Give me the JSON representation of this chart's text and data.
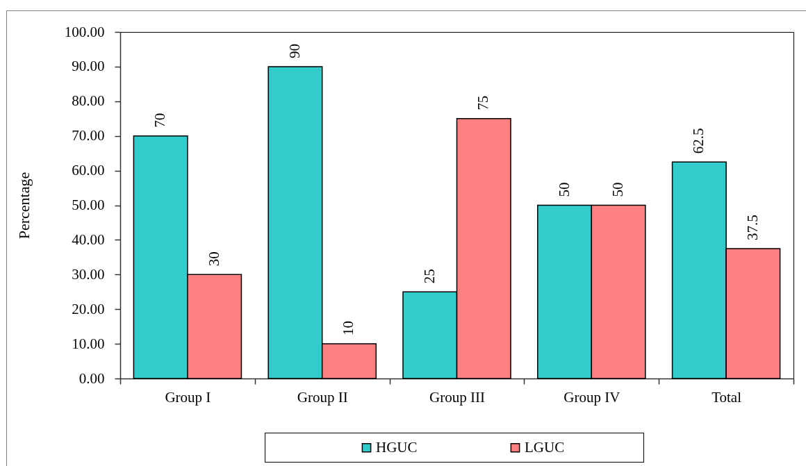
{
  "chart_data": {
    "type": "bar",
    "ylabel": "Percentage",
    "categories": [
      "Group I",
      "Group II",
      "Group III",
      "Group IV",
      "Total"
    ],
    "series": [
      {
        "name": "HGUC",
        "color": "#33cccc",
        "values": [
          70,
          90,
          25,
          50,
          62.5
        ]
      },
      {
        "name": "LGUC",
        "color": "#ff8080",
        "values": [
          30,
          10,
          75,
          50,
          37.5
        ]
      }
    ],
    "ylim": [
      0,
      100
    ],
    "yticks": [
      {
        "value": 0,
        "label": "0.00"
      },
      {
        "value": 10,
        "label": "10.00"
      },
      {
        "value": 20,
        "label": "20.00"
      },
      {
        "value": 30,
        "label": "30.00"
      },
      {
        "value": 40,
        "label": "40.00"
      },
      {
        "value": 50,
        "label": "50.00"
      },
      {
        "value": 60,
        "label": "60.00"
      },
      {
        "value": 70,
        "label": "70.00"
      },
      {
        "value": 80,
        "label": "80.00"
      },
      {
        "value": 90,
        "label": "90.00"
      },
      {
        "value": 100,
        "label": "100.00"
      }
    ],
    "data_labels": true,
    "legend": "bottom"
  }
}
